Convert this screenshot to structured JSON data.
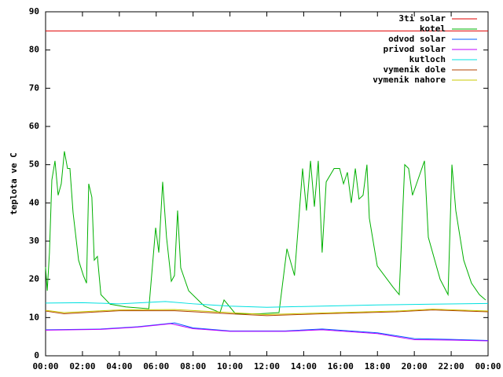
{
  "chart_data": {
    "type": "line",
    "y_label": "teplota ve C",
    "xlim": [
      0,
      24
    ],
    "ylim": [
      0,
      90
    ],
    "yticks": [
      0,
      10,
      20,
      30,
      40,
      50,
      60,
      70,
      80,
      90
    ],
    "xticks": [
      {
        "value": 0,
        "label": "00:00"
      },
      {
        "value": 2,
        "label": "02:00"
      },
      {
        "value": 4,
        "label": "04:00"
      },
      {
        "value": 6,
        "label": "06:00"
      },
      {
        "value": 8,
        "label": "08:00"
      },
      {
        "value": 10,
        "label": "10:00"
      },
      {
        "value": 12,
        "label": "12:00"
      },
      {
        "value": 14,
        "label": "14:00"
      },
      {
        "value": 16,
        "label": "16:00"
      },
      {
        "value": 18,
        "label": "18:00"
      },
      {
        "value": 20,
        "label": "20:00"
      },
      {
        "value": 22,
        "label": "22:00"
      },
      {
        "value": 24,
        "label": "00:00"
      }
    ],
    "legend": "top-right",
    "series": [
      {
        "name": "3ti solar",
        "color": "#e00000",
        "x": [
          0,
          24
        ],
        "values": [
          85,
          85
        ]
      },
      {
        "name": "kotel",
        "color": "#00b000",
        "x": [
          0,
          0.09,
          0.21,
          0.34,
          0.51,
          0.68,
          0.85,
          1.02,
          1.19,
          1.32,
          1.49,
          1.79,
          2.05,
          2.22,
          2.34,
          2.51,
          2.64,
          2.81,
          3.0,
          3.5,
          4.35,
          5.6,
          5.97,
          6.14,
          6.35,
          6.56,
          6.82,
          6.99,
          7.16,
          7.33,
          7.76,
          8.61,
          9.46,
          9.68,
          10.3,
          11.6,
          12.66,
          13.09,
          13.5,
          13.73,
          13.94,
          14.15,
          14.37,
          14.58,
          14.79,
          15.0,
          15.22,
          15.65,
          15.95,
          16.16,
          16.37,
          16.58,
          16.8,
          17.0,
          17.22,
          17.43,
          17.56,
          17.99,
          18.84,
          19.18,
          19.48,
          19.69,
          19.9,
          20.12,
          20.55,
          20.76,
          21.4,
          21.83,
          22.04,
          22.25,
          22.68,
          23.1,
          23.53,
          23.87
        ],
        "values": [
          23.2,
          17,
          27,
          46,
          51,
          42,
          45,
          53.5,
          49,
          49,
          37.5,
          25,
          21,
          19,
          45,
          41.5,
          25,
          26,
          16,
          13.5,
          12.8,
          12.3,
          33.5,
          27,
          45.5,
          31,
          19.5,
          21,
          38,
          23,
          17,
          13,
          11.3,
          14.6,
          11,
          11,
          11.3,
          28,
          21,
          35.5,
          49,
          38,
          51,
          39,
          51,
          27,
          45.5,
          49,
          49,
          45,
          48,
          40,
          49,
          41,
          42,
          50,
          36,
          23.5,
          18,
          16,
          50,
          49,
          42,
          45,
          51,
          31,
          20,
          16,
          50,
          38,
          25,
          19,
          16,
          14.6
        ]
      },
      {
        "name": "odvod solar",
        "color": "#0060ff",
        "x": [
          0,
          3,
          5,
          7,
          8,
          10,
          13,
          15,
          18,
          20,
          22,
          24
        ],
        "values": [
          6.8,
          7,
          7.6,
          8.6,
          7.3,
          6.5,
          6.5,
          7,
          6,
          4.5,
          4.3,
          4
        ]
      },
      {
        "name": "privod solar",
        "color": "#c000ff",
        "x": [
          0,
          3,
          5,
          6.8,
          8,
          10,
          13,
          15,
          18,
          20,
          22,
          24
        ],
        "values": [
          6.7,
          6.9,
          7.5,
          8.4,
          7.1,
          6.4,
          6.4,
          6.8,
          5.8,
          4.2,
          4.1,
          3.9
        ]
      },
      {
        "name": "kutloch",
        "color": "#00e0e0",
        "x": [
          0,
          2,
          4,
          6.5,
          8,
          10,
          12,
          15,
          18,
          21,
          24
        ],
        "values": [
          13.8,
          13.9,
          13.6,
          14.2,
          13.6,
          13,
          12.7,
          13,
          13.3,
          13.5,
          13.7
        ]
      },
      {
        "name": "vymenik dole",
        "color": "#b04000",
        "x": [
          0,
          1,
          4,
          7,
          10,
          12,
          15,
          19,
          21,
          24
        ],
        "values": [
          11.7,
          11,
          11.8,
          11.8,
          11,
          10.5,
          11,
          11.5,
          12,
          11.5
        ]
      },
      {
        "name": "vymenik nahore",
        "color": "#c8c800",
        "x": [
          0,
          1,
          4,
          7,
          10,
          12,
          15,
          19,
          21,
          24
        ],
        "values": [
          11.9,
          11.3,
          12,
          12.1,
          11.3,
          10.8,
          11.2,
          11.7,
          12.2,
          11.7
        ]
      }
    ]
  }
}
